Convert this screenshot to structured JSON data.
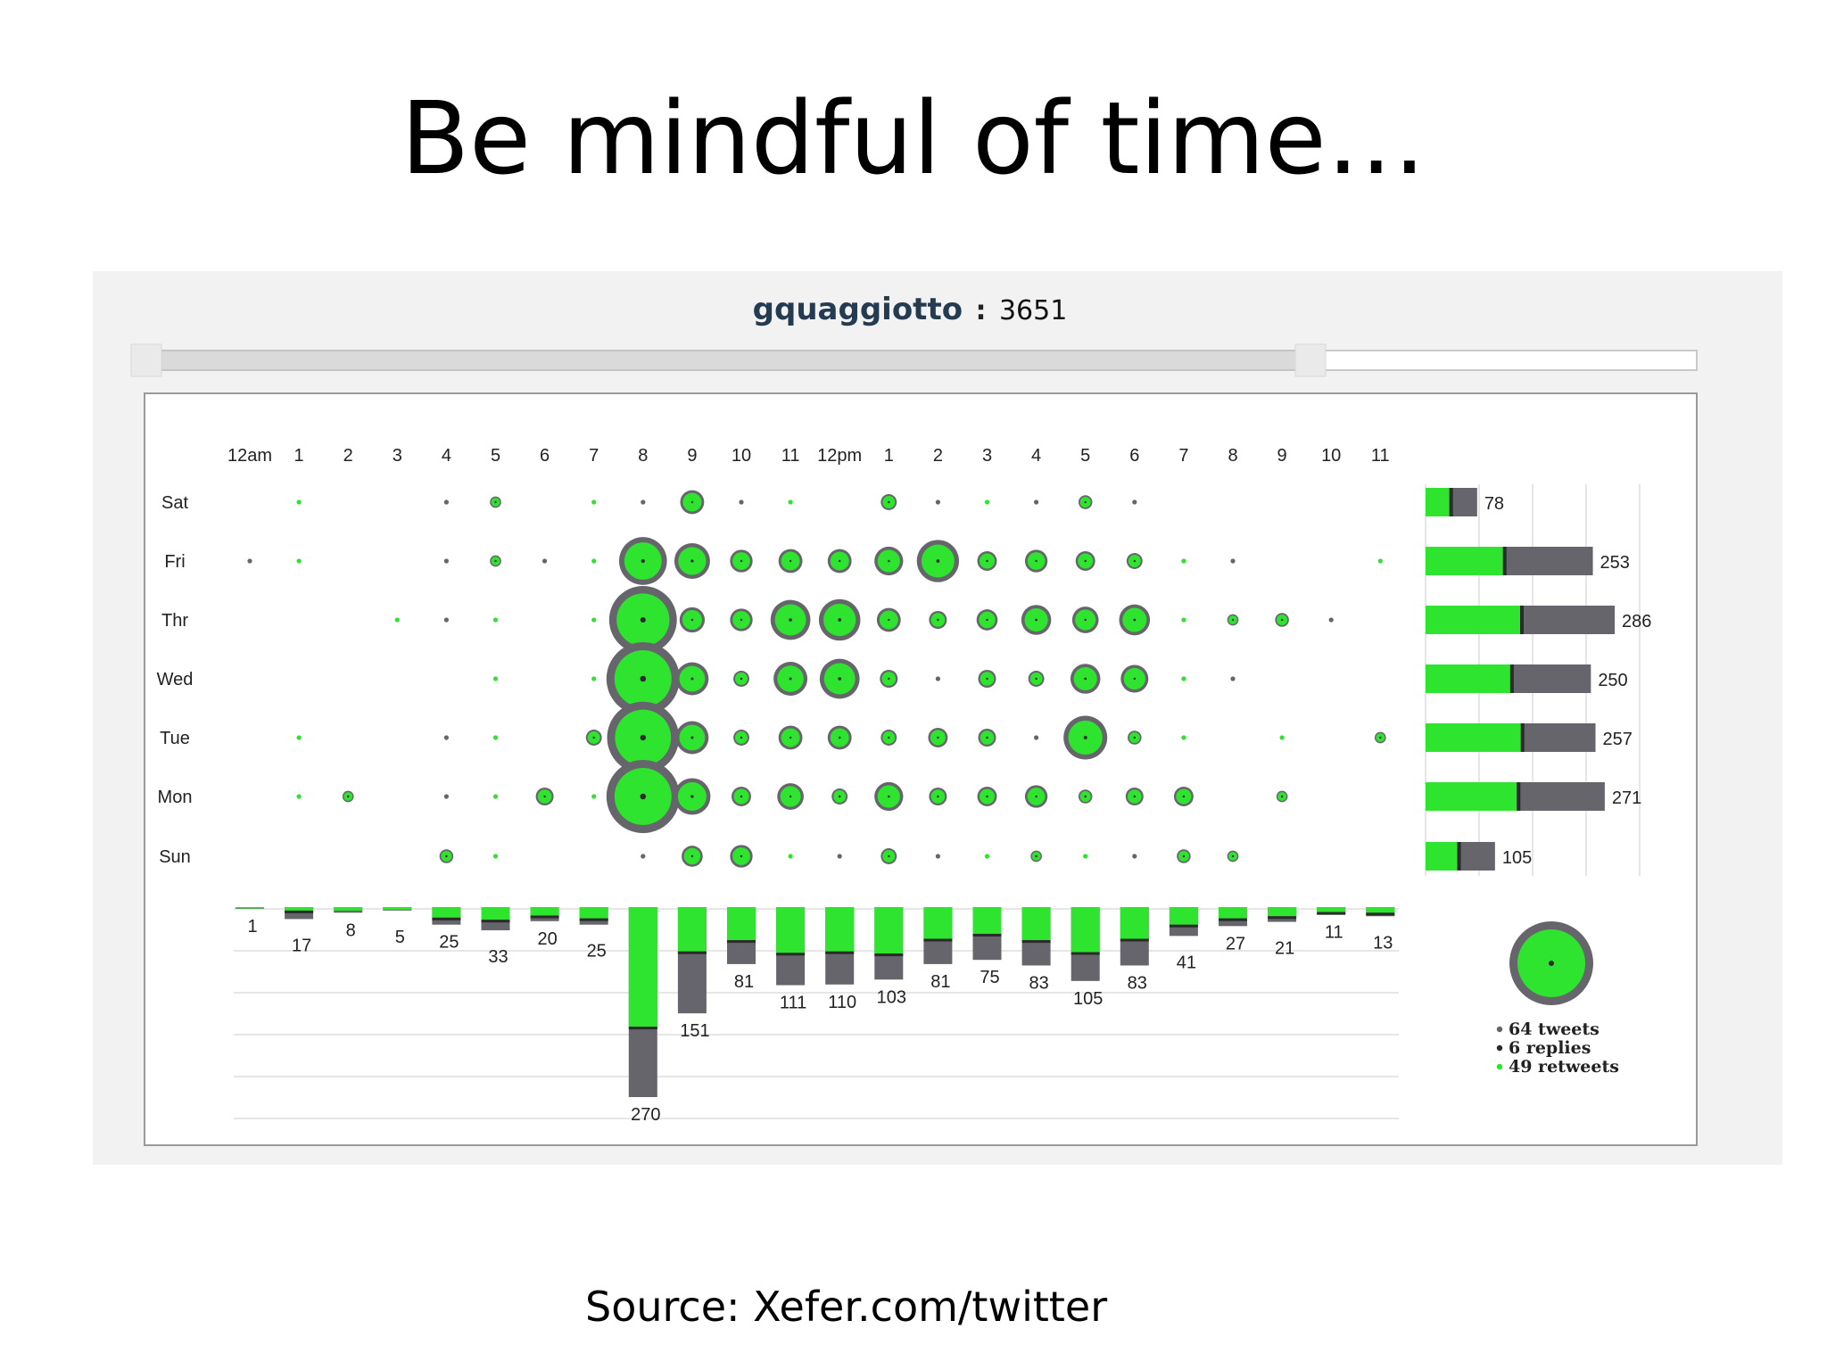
{
  "slide": {
    "title": "Be mindful of time…",
    "source": "Source: Xefer.com/twitter"
  },
  "header": {
    "user": "gquaggiotto",
    "separator": ":",
    "count": "3651"
  },
  "colors": {
    "green": "#2ee42e",
    "gray": "#66656c",
    "dark": "#2b2b2b",
    "grid": "#dddddd"
  },
  "chart_data": {
    "type": "bubble-matrix",
    "hours": [
      "12am",
      "1",
      "2",
      "3",
      "4",
      "5",
      "6",
      "7",
      "8",
      "9",
      "10",
      "11",
      "12pm",
      "1",
      "2",
      "3",
      "4",
      "5",
      "6",
      "7",
      "8",
      "9",
      "10",
      "11"
    ],
    "days": [
      "Sat",
      "Fri",
      "Thr",
      "Wed",
      "Tue",
      "Mon",
      "Sun"
    ],
    "matrix_total": [
      [
        0,
        1,
        0,
        0,
        1,
        2,
        0,
        1,
        1,
        9,
        1,
        1,
        0,
        4,
        1,
        1,
        1,
        3,
        1,
        0,
        0,
        0,
        0,
        0
      ],
      [
        1,
        1,
        0,
        0,
        1,
        2,
        1,
        1,
        36,
        20,
        8,
        9,
        9,
        13,
        28,
        6,
        8,
        6,
        4,
        1,
        1,
        0,
        0,
        1
      ],
      [
        0,
        0,
        0,
        1,
        1,
        1,
        0,
        1,
        72,
        10,
        8,
        25,
        27,
        9,
        5,
        7,
        14,
        11,
        15,
        1,
        2,
        3,
        1,
        0
      ],
      [
        0,
        0,
        0,
        0,
        0,
        1,
        0,
        1,
        84,
        17,
        4,
        18,
        25,
        5,
        1,
        5,
        4,
        14,
        12,
        1,
        1,
        0,
        0,
        0
      ],
      [
        0,
        1,
        0,
        0,
        1,
        1,
        0,
        4,
        81,
        17,
        4,
        9,
        9,
        4,
        6,
        5,
        1,
        30,
        3,
        1,
        0,
        1,
        0,
        2
      ],
      [
        0,
        1,
        2,
        0,
        1,
        1,
        5,
        1,
        84,
        21,
        6,
        11,
        4,
        13,
        5,
        6,
        8,
        3,
        5,
        6,
        0,
        2,
        0,
        0
      ],
      [
        0,
        0,
        0,
        0,
        3,
        1,
        0,
        0,
        1,
        7,
        8,
        1,
        1,
        4,
        1,
        1,
        2,
        1,
        1,
        3,
        2,
        0,
        0,
        0
      ]
    ],
    "day_totals": {
      "values": [
        78,
        253,
        286,
        250,
        257,
        271,
        105
      ],
      "retweets": [
        36,
        117,
        143,
        128,
        144,
        138,
        48
      ],
      "replies": [
        3,
        3,
        3,
        3,
        3,
        3,
        3
      ]
    },
    "hour_totals": {
      "values": [
        1,
        17,
        8,
        5,
        25,
        33,
        20,
        25,
        270,
        151,
        81,
        111,
        110,
        103,
        81,
        75,
        83,
        105,
        83,
        41,
        27,
        21,
        11,
        13
      ],
      "retweets": [
        1,
        5,
        5,
        4,
        15,
        18,
        12,
        16,
        170,
        63,
        47,
        65,
        63,
        66,
        45,
        38,
        47,
        64,
        45,
        25,
        16,
        13,
        7,
        8
      ],
      "replies": [
        0,
        1,
        0,
        0,
        1,
        1,
        1,
        1,
        7,
        2,
        1,
        3,
        2,
        1,
        1,
        1,
        1,
        2,
        2,
        1,
        1,
        1,
        1,
        1
      ]
    },
    "legend": {
      "items": [
        "64 tweets",
        "6 replies",
        "49 retweets"
      ],
      "sample": {
        "total": 64,
        "replies": 6,
        "retweets": 49
      }
    }
  }
}
